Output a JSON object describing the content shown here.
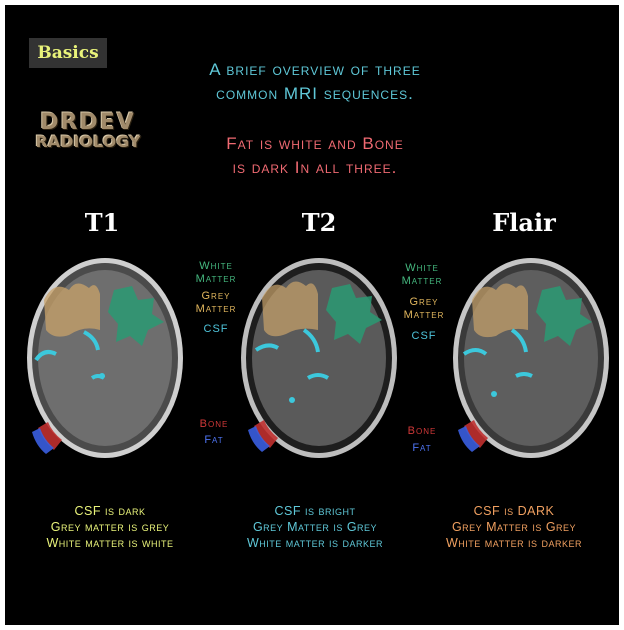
{
  "badge": "Basics",
  "intro_line1": "A brief overview of three",
  "intro_line2": "common MRI sequences.",
  "note_line1": "Fat is white and Bone",
  "note_line2": "is dark In all three.",
  "logo": {
    "line1": "DRDEV",
    "line2": "RADIOLOGY"
  },
  "sequences": [
    {
      "title": "T1",
      "lines": [
        "CSF is dark",
        "Grey matter is grey",
        "White matter is white"
      ],
      "text_color": "#e9f37a"
    },
    {
      "title": "T2",
      "lines": [
        "CSF is bright",
        "Grey Matter is Grey",
        "White matter is darker"
      ],
      "text_color": "#5fc8d8"
    },
    {
      "title": "Flair",
      "lines": [
        "CSF is DARK",
        "Grey Matter is Grey",
        "White matter is darker"
      ],
      "text_color": "#f0a060"
    }
  ],
  "labels": {
    "white_matter": [
      "White",
      "Matter"
    ],
    "grey_matter": [
      "Grey",
      "Matter"
    ],
    "csf": "CSF",
    "bone": "Bone",
    "fat": "Fat"
  },
  "colors": {
    "white_matter": "#45b87f",
    "grey_matter": "#e2b75e",
    "csf": "#4ec3da",
    "bone": "#d03838",
    "fat": "#4e74f2"
  }
}
